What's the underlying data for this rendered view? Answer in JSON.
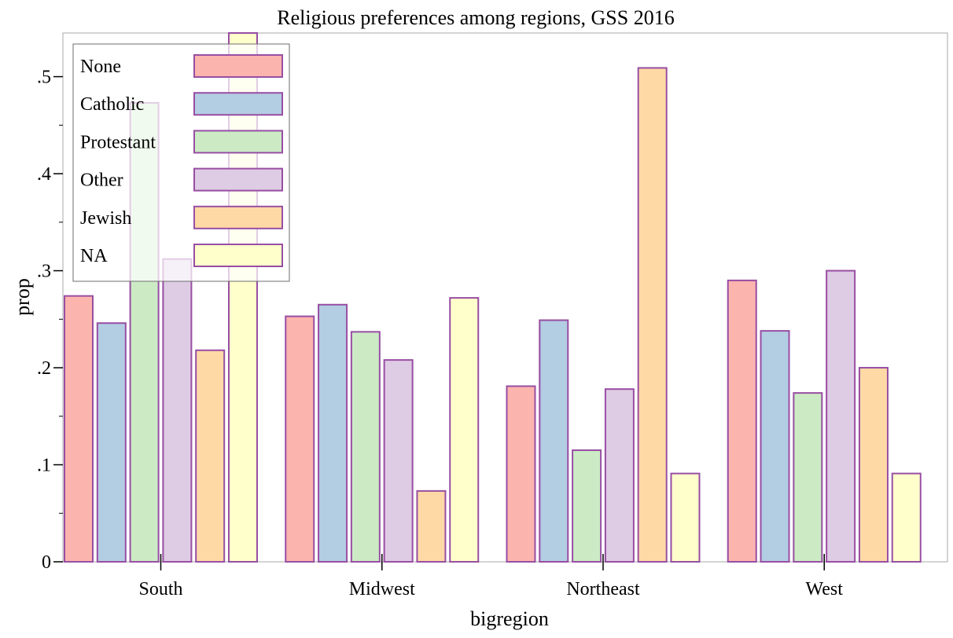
{
  "chart_data": {
    "type": "bar",
    "title": "Religious preferences among regions, GSS 2016",
    "xlabel": "bigregion",
    "ylabel": "prop",
    "categories": [
      "South",
      "Midwest",
      "Northeast",
      "West"
    ],
    "ylim": [
      0,
      0.545
    ],
    "yticks": [
      {
        "value": 0,
        "label": "0"
      },
      {
        "value": 0.1,
        "label": ".1"
      },
      {
        "value": 0.2,
        "label": ".2"
      },
      {
        "value": 0.3,
        "label": ".3"
      },
      {
        "value": 0.4,
        "label": ".4"
      },
      {
        "value": 0.5,
        "label": ".5"
      }
    ],
    "minor_yticks": [
      0.05,
      0.15,
      0.25,
      0.35,
      0.45
    ],
    "series": [
      {
        "name": "None",
        "color": "#fbb4ae",
        "values": [
          0.274,
          0.253,
          0.181,
          0.29
        ]
      },
      {
        "name": "Catholic",
        "color": "#b3cde3",
        "values": [
          0.246,
          0.265,
          0.249,
          0.238
        ]
      },
      {
        "name": "Protestant",
        "color": "#ccebc5",
        "values": [
          0.473,
          0.237,
          0.115,
          0.174
        ]
      },
      {
        "name": "Other",
        "color": "#decbe4",
        "values": [
          0.312,
          0.208,
          0.178,
          0.3
        ]
      },
      {
        "name": "Jewish",
        "color": "#fed9a6",
        "values": [
          0.218,
          0.073,
          0.509,
          0.2
        ]
      },
      {
        "name": "NA",
        "color": "#ffffcc",
        "values": [
          0.545,
          0.272,
          0.091,
          0.091
        ]
      }
    ],
    "bar_outline_color": "#984ea3",
    "legend_position": "top-left",
    "grid": false
  }
}
